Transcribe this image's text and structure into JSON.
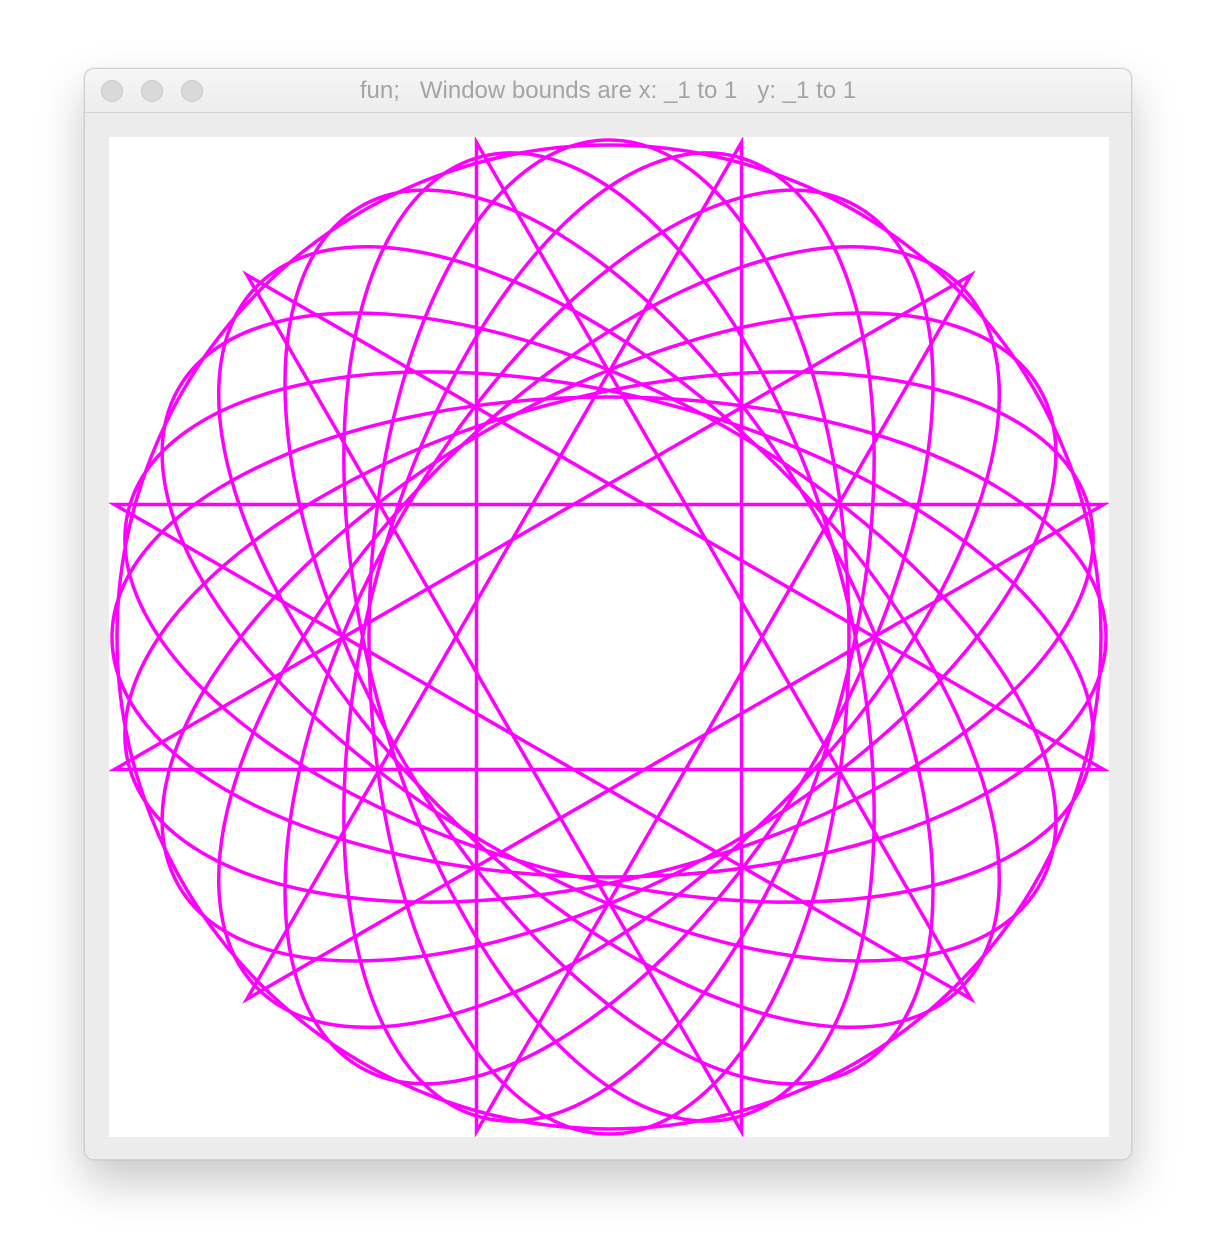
{
  "window": {
    "title": "fun;   Window bounds are x: _1 to 1   y: _1 to 1",
    "controls": [
      "close-button",
      "minimize-button",
      "zoom-button"
    ]
  },
  "plot": {
    "stroke_color": "#ff00ff",
    "background_color": "#ffffff",
    "x_bounds": [
      -1,
      1
    ],
    "y_bounds": [
      -1,
      1
    ],
    "pattern": "rotated-ellipses-and-star",
    "ellipse_count": 12,
    "star_points": 12
  }
}
